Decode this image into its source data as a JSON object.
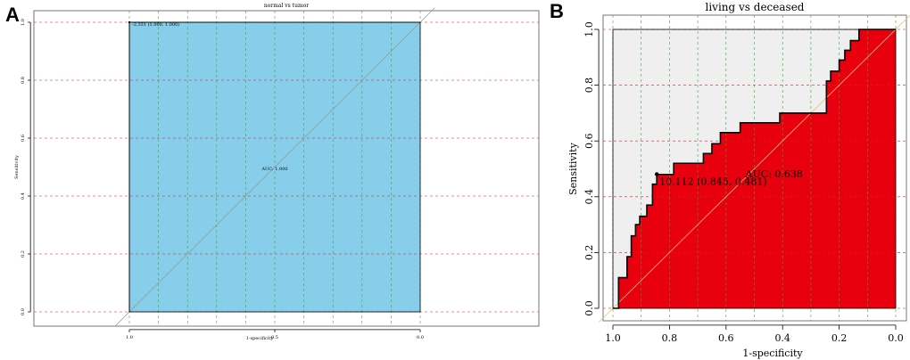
{
  "panels": {
    "a": {
      "letter": "A"
    },
    "b": {
      "letter": "B"
    }
  },
  "chart_data": [
    {
      "type": "line",
      "panel": "A",
      "title": "normal vs tumor",
      "xlabel": "1-specificity",
      "ylabel": "Sensitivity",
      "x_reversed": true,
      "xlim": [
        1.0,
        0.0
      ],
      "ylim": [
        0.0,
        1.0
      ],
      "x_ticks": [
        {
          "value": 1.0,
          "label": "1.0"
        },
        {
          "value": 0.5,
          "label": "0.5"
        },
        {
          "value": 0.0,
          "label": "0.0"
        }
      ],
      "y_ticks": [
        {
          "value": 0.0,
          "label": "0.0"
        },
        {
          "value": 0.2,
          "label": "0.2"
        },
        {
          "value": 0.4,
          "label": "0.4"
        },
        {
          "value": 0.6,
          "label": "0.6"
        },
        {
          "value": 0.8,
          "label": "0.8"
        },
        {
          "value": 1.0,
          "label": "1.0"
        }
      ],
      "grid": true,
      "curve": {
        "x": [
          1.0,
          1.0,
          0.0,
          0.0
        ],
        "y": [
          0.0,
          1.0,
          1.0,
          0.0
        ]
      },
      "fill_color": "#87ceeb",
      "upper_fill_color": "#87ceeb",
      "auc_label": "AUC: 1.000",
      "auc_pos": {
        "x": 0.5,
        "y": 0.49
      },
      "threshold": {
        "x": 1.0,
        "y": 1.0,
        "label": "-2.331 (1.000, 1.000)"
      }
    },
    {
      "type": "line",
      "panel": "B",
      "title": "living vs deceased",
      "xlabel": "1-specificity",
      "ylabel": "Sensitivity",
      "x_reversed": true,
      "xlim": [
        1.0,
        0.0
      ],
      "ylim": [
        0.0,
        1.0
      ],
      "x_ticks": [
        {
          "value": 1.0,
          "label": "1.0"
        },
        {
          "value": 0.8,
          "label": "0.8"
        },
        {
          "value": 0.6,
          "label": "0.6"
        },
        {
          "value": 0.4,
          "label": "0.4"
        },
        {
          "value": 0.2,
          "label": "0.2"
        },
        {
          "value": 0.0,
          "label": "0.0"
        }
      ],
      "y_ticks": [
        {
          "value": 0.0,
          "label": "0.0"
        },
        {
          "value": 0.2,
          "label": "0.2"
        },
        {
          "value": 0.4,
          "label": "0.4"
        },
        {
          "value": 0.6,
          "label": "0.6"
        },
        {
          "value": 0.8,
          "label": "0.8"
        },
        {
          "value": 1.0,
          "label": "1.0"
        }
      ],
      "grid": true,
      "curve": {
        "x": [
          1.0,
          0.98,
          0.98,
          0.95,
          0.95,
          0.935,
          0.935,
          0.92,
          0.92,
          0.905,
          0.905,
          0.88,
          0.88,
          0.86,
          0.86,
          0.845,
          0.845,
          0.785,
          0.785,
          0.68,
          0.68,
          0.65,
          0.65,
          0.62,
          0.62,
          0.55,
          0.55,
          0.41,
          0.41,
          0.245,
          0.245,
          0.23,
          0.23,
          0.2,
          0.2,
          0.18,
          0.18,
          0.16,
          0.16,
          0.13,
          0.13,
          0.09,
          0.0,
          0.0
        ],
        "y": [
          0.0,
          0.0,
          0.11,
          0.11,
          0.185,
          0.185,
          0.26,
          0.26,
          0.3,
          0.3,
          0.33,
          0.33,
          0.37,
          0.37,
          0.445,
          0.445,
          0.48,
          0.48,
          0.52,
          0.52,
          0.555,
          0.555,
          0.59,
          0.59,
          0.63,
          0.63,
          0.665,
          0.665,
          0.7,
          0.7,
          0.815,
          0.815,
          0.85,
          0.85,
          0.89,
          0.89,
          0.925,
          0.925,
          0.96,
          0.96,
          1.0,
          1.0,
          1.0,
          0.0
        ]
      },
      "fill_color": "#e8000f",
      "upper_fill_color": "#efefef",
      "auc_label": "AUC: 0.638",
      "auc_pos": {
        "x": 0.5,
        "y": 0.47
      },
      "threshold": {
        "x": 0.845,
        "y": 0.481,
        "label": "10.112 (0.845, 0.481)"
      }
    }
  ]
}
